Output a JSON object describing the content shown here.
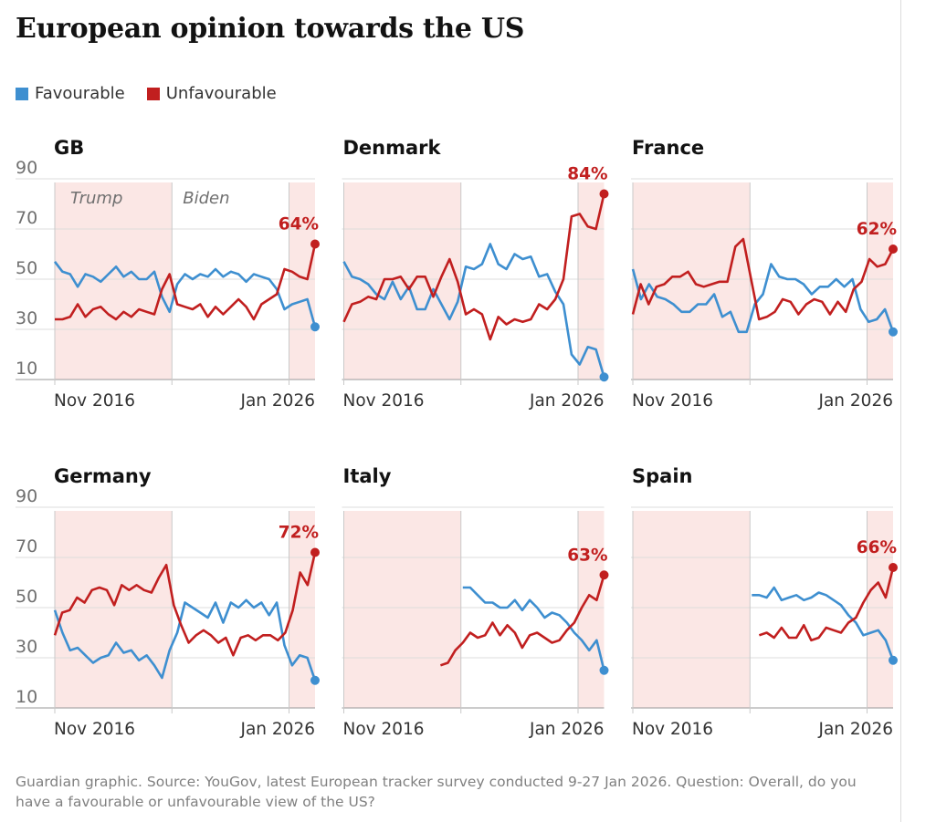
{
  "title": "European opinion towards the US",
  "legend": [
    {
      "label": "Favourable",
      "color": "#3e8fd0"
    },
    {
      "label": "Unfavourable",
      "color": "#c11f1f"
    }
  ],
  "footer": "Guardian graphic. Source: YouGov, latest European tracker survey conducted 9-27 Jan 2026. Question: Overall, do you have a favourable or unfavourable view of the US?",
  "chart_data": {
    "type": "line",
    "ylim": [
      10,
      90
    ],
    "yticks": [
      "90",
      "70",
      "50",
      "30",
      "10"
    ],
    "xlabels": [
      "Nov 2016",
      "Jan 2026"
    ],
    "shading": {
      "trump1": [
        0,
        0.45
      ],
      "trump2": [
        0.9,
        1.0
      ],
      "color": "#fbe7e5"
    },
    "period_labels": [
      "Trump",
      "Biden"
    ],
    "panels": [
      {
        "name": "GB",
        "label": "64%",
        "series": [
          {
            "name": "Favourable",
            "start": 0,
            "values": [
              57,
              53,
              52,
              47,
              52,
              51,
              49,
              52,
              55,
              51,
              53,
              50,
              50,
              53,
              43,
              37,
              48,
              52,
              50,
              52,
              51,
              54,
              51,
              53,
              52,
              49,
              52,
              51,
              50,
              46,
              38,
              40,
              41,
              42,
              31
            ]
          },
          {
            "name": "Unfavourable",
            "start": 0,
            "values": [
              34,
              34,
              35,
              40,
              35,
              38,
              39,
              36,
              34,
              37,
              35,
              38,
              37,
              36,
              46,
              52,
              40,
              39,
              38,
              40,
              35,
              39,
              36,
              39,
              42,
              39,
              34,
              40,
              42,
              44,
              54,
              53,
              51,
              50,
              64
            ]
          }
        ]
      },
      {
        "name": "Denmark",
        "label": "84%",
        "series": [
          {
            "name": "Favourable",
            "start": 0,
            "values": [
              57,
              51,
              50,
              48,
              44,
              42,
              49,
              42,
              47,
              38,
              38,
              46,
              40,
              34,
              41,
              55,
              54,
              56,
              64,
              56,
              54,
              60,
              58,
              59,
              51,
              52,
              45,
              40,
              20,
              16,
              23,
              22,
              11
            ]
          },
          {
            "name": "Unfavourable",
            "start": 0,
            "values": [
              33,
              40,
              41,
              43,
              42,
              50,
              50,
              51,
              46,
              51,
              51,
              43,
              51,
              58,
              49,
              36,
              38,
              36,
              26,
              35,
              32,
              34,
              33,
              34,
              40,
              38,
              42,
              50,
              75,
              76,
              71,
              70,
              84
            ]
          }
        ]
      },
      {
        "name": "France",
        "label": "62%",
        "series": [
          {
            "name": "Favourable",
            "start": 0,
            "values": [
              54,
              42,
              48,
              43,
              42,
              40,
              37,
              37,
              40,
              40,
              44,
              35,
              37,
              29,
              29,
              40,
              44,
              56,
              51,
              50,
              50,
              48,
              44,
              47,
              47,
              50,
              47,
              50,
              38,
              33,
              34,
              38,
              29
            ]
          },
          {
            "name": "Unfavourable",
            "start": 0,
            "values": [
              36,
              48,
              40,
              47,
              48,
              51,
              51,
              53,
              48,
              47,
              48,
              49,
              49,
              63,
              66,
              50,
              34,
              35,
              37,
              42,
              41,
              36,
              40,
              42,
              41,
              36,
              41,
              37,
              46,
              49,
              58,
              55,
              56,
              62
            ]
          }
        ]
      },
      {
        "name": "Germany",
        "label": "72%",
        "series": [
          {
            "name": "Favourable",
            "start": 0,
            "values": [
              49,
              40,
              33,
              34,
              31,
              28,
              30,
              31,
              36,
              32,
              33,
              29,
              31,
              27,
              22,
              33,
              40,
              52,
              50,
              48,
              46,
              52,
              44,
              52,
              50,
              53,
              50,
              52,
              47,
              52,
              35,
              27,
              31,
              30,
              21
            ]
          },
          {
            "name": "Unfavourable",
            "start": 0,
            "values": [
              39,
              48,
              49,
              54,
              52,
              57,
              58,
              57,
              51,
              59,
              57,
              59,
              57,
              56,
              62,
              67,
              51,
              43,
              36,
              39,
              41,
              39,
              36,
              38,
              31,
              38,
              39,
              37,
              39,
              39,
              37,
              40,
              49,
              64,
              59,
              72
            ]
          }
        ]
      },
      {
        "name": "Italy",
        "label": "63%",
        "series": [
          {
            "name": "Favourable",
            "start": 14,
            "values": [
              58,
              58,
              55,
              52,
              52,
              50,
              50,
              53,
              49,
              53,
              50,
              46,
              48,
              47,
              44,
              40,
              37,
              33,
              37,
              25
            ]
          },
          {
            "name": "Unfavourable",
            "start": 14,
            "values": [
              27,
              28,
              33,
              36,
              40,
              38,
              39,
              44,
              39,
              43,
              40,
              34,
              39,
              40,
              38,
              36,
              37,
              41,
              44,
              50,
              55,
              53,
              63
            ]
          }
        ]
      },
      {
        "name": "Spain",
        "label": "66%",
        "series": [
          {
            "name": "Favourable",
            "start": 14,
            "values": [
              55,
              55,
              54,
              58,
              53,
              54,
              55,
              53,
              54,
              56,
              55,
              53,
              51,
              47,
              44,
              39,
              40,
              41,
              37,
              29
            ]
          },
          {
            "name": "Unfavourable",
            "start": 14,
            "values": [
              39,
              40,
              38,
              42,
              38,
              38,
              43,
              37,
              38,
              42,
              41,
              40,
              44,
              46,
              52,
              57,
              60,
              54,
              66
            ]
          }
        ]
      }
    ]
  }
}
